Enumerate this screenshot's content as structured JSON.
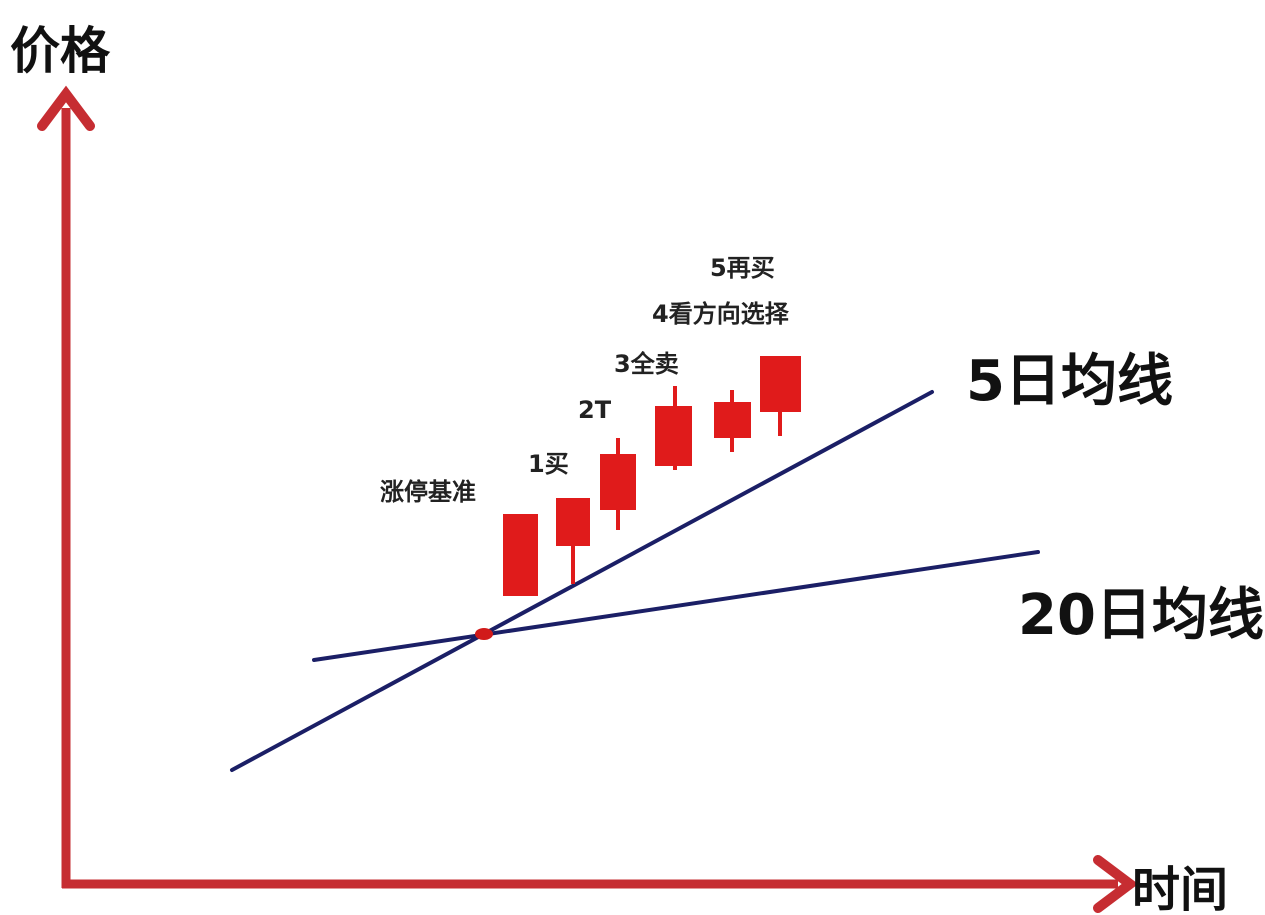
{
  "axes": {
    "y_label": "价格",
    "x_label": "时间",
    "color": "#c62d32"
  },
  "lines": {
    "ma5_label": "5日均线",
    "ma20_label": "20日均线",
    "color": "#1b1f66",
    "cross_marker_color": "#d11a1a"
  },
  "candle_color": "#e01b1b",
  "annotations": {
    "limit_up_base": "涨停基准",
    "step1": "1买",
    "step2": "2T",
    "step3": "3全卖",
    "step4": "4看方向选择",
    "step5": "5再买"
  }
}
